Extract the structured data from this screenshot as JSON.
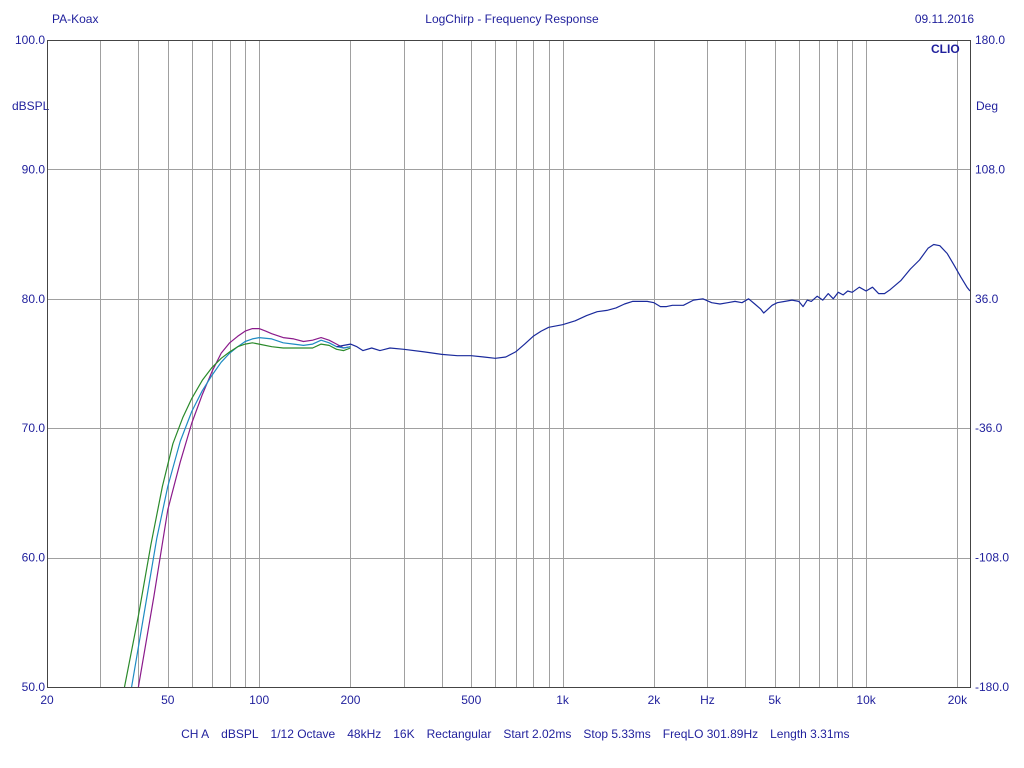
{
  "header": {
    "left": "PA-Koax",
    "center": "LogChirp - Frequency Response",
    "right": "09.11.2016"
  },
  "units": {
    "left": "dBSPL",
    "right": "Deg"
  },
  "logo": "CLIO",
  "footer": [
    "CH A",
    "dBSPL",
    "1/12 Octave",
    "48kHz",
    "16K",
    "Rectangular",
    "Start 2.02ms",
    "Stop 5.33ms",
    "FreqLO 301.89Hz",
    "Length 3.31ms"
  ],
  "colors": {
    "text": "#1f1f9c",
    "grid": "#a0a0a0",
    "series": [
      "#8b1a8b",
      "#1e8bc3",
      "#2a8a2a",
      "#1a2a9c"
    ]
  },
  "chart_data": {
    "type": "line",
    "x_scale": "log",
    "xlim": [
      20,
      22000
    ],
    "ylim": [
      50,
      100
    ],
    "y2lim": [
      -180,
      180
    ],
    "grid": true,
    "x_ticks": [
      {
        "v": 20,
        "label": "20"
      },
      {
        "v": 50,
        "label": "50"
      },
      {
        "v": 100,
        "label": "100"
      },
      {
        "v": 200,
        "label": "200"
      },
      {
        "v": 500,
        "label": "500"
      },
      {
        "v": 1000,
        "label": "1k"
      },
      {
        "v": 2000,
        "label": "2k"
      },
      {
        "v": 3000,
        "label": "Hz"
      },
      {
        "v": 5000,
        "label": "5k"
      },
      {
        "v": 10000,
        "label": "10k"
      },
      {
        "v": 20000,
        "label": "20k"
      }
    ],
    "y_ticks": [
      {
        "v": 50,
        "label": "50.0"
      },
      {
        "v": 60,
        "label": "60.0"
      },
      {
        "v": 70,
        "label": "70.0"
      },
      {
        "v": 80,
        "label": "80.0"
      },
      {
        "v": 90,
        "label": "90.0"
      },
      {
        "v": 100,
        "label": "100.0"
      }
    ],
    "y2_ticks": [
      {
        "v": -180,
        "label": "-180.0"
      },
      {
        "v": -108,
        "label": "-108.0"
      },
      {
        "v": -36,
        "label": "-36.0"
      },
      {
        "v": 36,
        "label": "36.0"
      },
      {
        "v": 108,
        "label": "108.0"
      },
      {
        "v": 180,
        "label": "180.0"
      }
    ],
    "series": [
      {
        "points": [
          [
            40,
            50
          ],
          [
            45,
            57
          ],
          [
            50,
            63.7
          ],
          [
            55,
            67.4
          ],
          [
            60,
            70.4
          ],
          [
            65,
            72.6
          ],
          [
            70,
            74.4
          ],
          [
            75,
            75.8
          ],
          [
            80,
            76.6
          ],
          [
            85,
            77.1
          ],
          [
            90,
            77.5
          ],
          [
            95,
            77.7
          ],
          [
            100,
            77.7
          ],
          [
            105,
            77.5
          ],
          [
            110,
            77.3
          ],
          [
            120,
            77.0
          ],
          [
            130,
            76.9
          ],
          [
            140,
            76.7
          ],
          [
            150,
            76.8
          ],
          [
            160,
            77.0
          ],
          [
            170,
            76.8
          ],
          [
            180,
            76.5
          ],
          [
            190,
            76.2
          ],
          [
            200,
            76.3
          ]
        ]
      },
      {
        "points": [
          [
            38,
            50
          ],
          [
            42,
            56
          ],
          [
            46,
            61.5
          ],
          [
            50,
            65.5
          ],
          [
            55,
            69.0
          ],
          [
            60,
            71.3
          ],
          [
            65,
            72.9
          ],
          [
            70,
            74.1
          ],
          [
            75,
            75.1
          ],
          [
            80,
            75.8
          ],
          [
            85,
            76.3
          ],
          [
            90,
            76.7
          ],
          [
            95,
            76.9
          ],
          [
            100,
            77.0
          ],
          [
            110,
            76.9
          ],
          [
            120,
            76.6
          ],
          [
            130,
            76.5
          ],
          [
            140,
            76.4
          ],
          [
            150,
            76.5
          ],
          [
            160,
            76.8
          ],
          [
            170,
            76.6
          ],
          [
            180,
            76.3
          ],
          [
            190,
            76.2
          ],
          [
            200,
            76.3
          ]
        ]
      },
      {
        "points": [
          [
            36,
            50
          ],
          [
            40,
            55.5
          ],
          [
            44,
            61.0
          ],
          [
            48,
            65.5
          ],
          [
            52,
            68.8
          ],
          [
            56,
            70.8
          ],
          [
            60,
            72.3
          ],
          [
            65,
            73.7
          ],
          [
            70,
            74.7
          ],
          [
            75,
            75.4
          ],
          [
            80,
            75.9
          ],
          [
            85,
            76.3
          ],
          [
            90,
            76.5
          ],
          [
            95,
            76.6
          ],
          [
            100,
            76.5
          ],
          [
            110,
            76.3
          ],
          [
            120,
            76.2
          ],
          [
            130,
            76.2
          ],
          [
            140,
            76.2
          ],
          [
            150,
            76.2
          ],
          [
            160,
            76.5
          ],
          [
            170,
            76.4
          ],
          [
            180,
            76.1
          ],
          [
            190,
            76.0
          ],
          [
            200,
            76.2
          ]
        ]
      },
      {
        "points": [
          [
            180,
            76.3
          ],
          [
            190,
            76.4
          ],
          [
            200,
            76.5
          ],
          [
            210,
            76.3
          ],
          [
            220,
            76.0
          ],
          [
            235,
            76.2
          ],
          [
            250,
            76.0
          ],
          [
            270,
            76.2
          ],
          [
            300,
            76.1
          ],
          [
            350,
            75.9
          ],
          [
            400,
            75.7
          ],
          [
            450,
            75.6
          ],
          [
            500,
            75.6
          ],
          [
            550,
            75.5
          ],
          [
            600,
            75.4
          ],
          [
            650,
            75.5
          ],
          [
            700,
            75.9
          ],
          [
            750,
            76.5
          ],
          [
            800,
            77.1
          ],
          [
            850,
            77.5
          ],
          [
            900,
            77.8
          ],
          [
            1000,
            78.0
          ],
          [
            1100,
            78.3
          ],
          [
            1200,
            78.7
          ],
          [
            1300,
            79.0
          ],
          [
            1400,
            79.1
          ],
          [
            1500,
            79.3
          ],
          [
            1600,
            79.6
          ],
          [
            1700,
            79.8
          ],
          [
            1800,
            79.8
          ],
          [
            1900,
            79.8
          ],
          [
            2000,
            79.7
          ],
          [
            2100,
            79.4
          ],
          [
            2200,
            79.4
          ],
          [
            2300,
            79.5
          ],
          [
            2500,
            79.5
          ],
          [
            2700,
            79.9
          ],
          [
            2900,
            80.0
          ],
          [
            3100,
            79.7
          ],
          [
            3300,
            79.6
          ],
          [
            3500,
            79.7
          ],
          [
            3700,
            79.8
          ],
          [
            3900,
            79.7
          ],
          [
            4100,
            80.0
          ],
          [
            4300,
            79.6
          ],
          [
            4500,
            79.2
          ],
          [
            4600,
            78.9
          ],
          [
            4700,
            79.1
          ],
          [
            4900,
            79.5
          ],
          [
            5100,
            79.7
          ],
          [
            5400,
            79.8
          ],
          [
            5700,
            79.9
          ],
          [
            6000,
            79.8
          ],
          [
            6200,
            79.4
          ],
          [
            6400,
            79.9
          ],
          [
            6600,
            79.8
          ],
          [
            6900,
            80.2
          ],
          [
            7200,
            79.9
          ],
          [
            7500,
            80.4
          ],
          [
            7800,
            80.0
          ],
          [
            8100,
            80.5
          ],
          [
            8400,
            80.3
          ],
          [
            8700,
            80.6
          ],
          [
            9000,
            80.5
          ],
          [
            9500,
            80.9
          ],
          [
            10000,
            80.6
          ],
          [
            10500,
            80.9
          ],
          [
            11000,
            80.4
          ],
          [
            11500,
            80.4
          ],
          [
            12000,
            80.7
          ],
          [
            13000,
            81.4
          ],
          [
            14000,
            82.3
          ],
          [
            15000,
            83.0
          ],
          [
            16000,
            83.9
          ],
          [
            16700,
            84.2
          ],
          [
            17500,
            84.1
          ],
          [
            18500,
            83.5
          ],
          [
            19500,
            82.6
          ],
          [
            20500,
            81.7
          ],
          [
            21500,
            80.9
          ],
          [
            22000,
            80.6
          ]
        ]
      }
    ]
  }
}
